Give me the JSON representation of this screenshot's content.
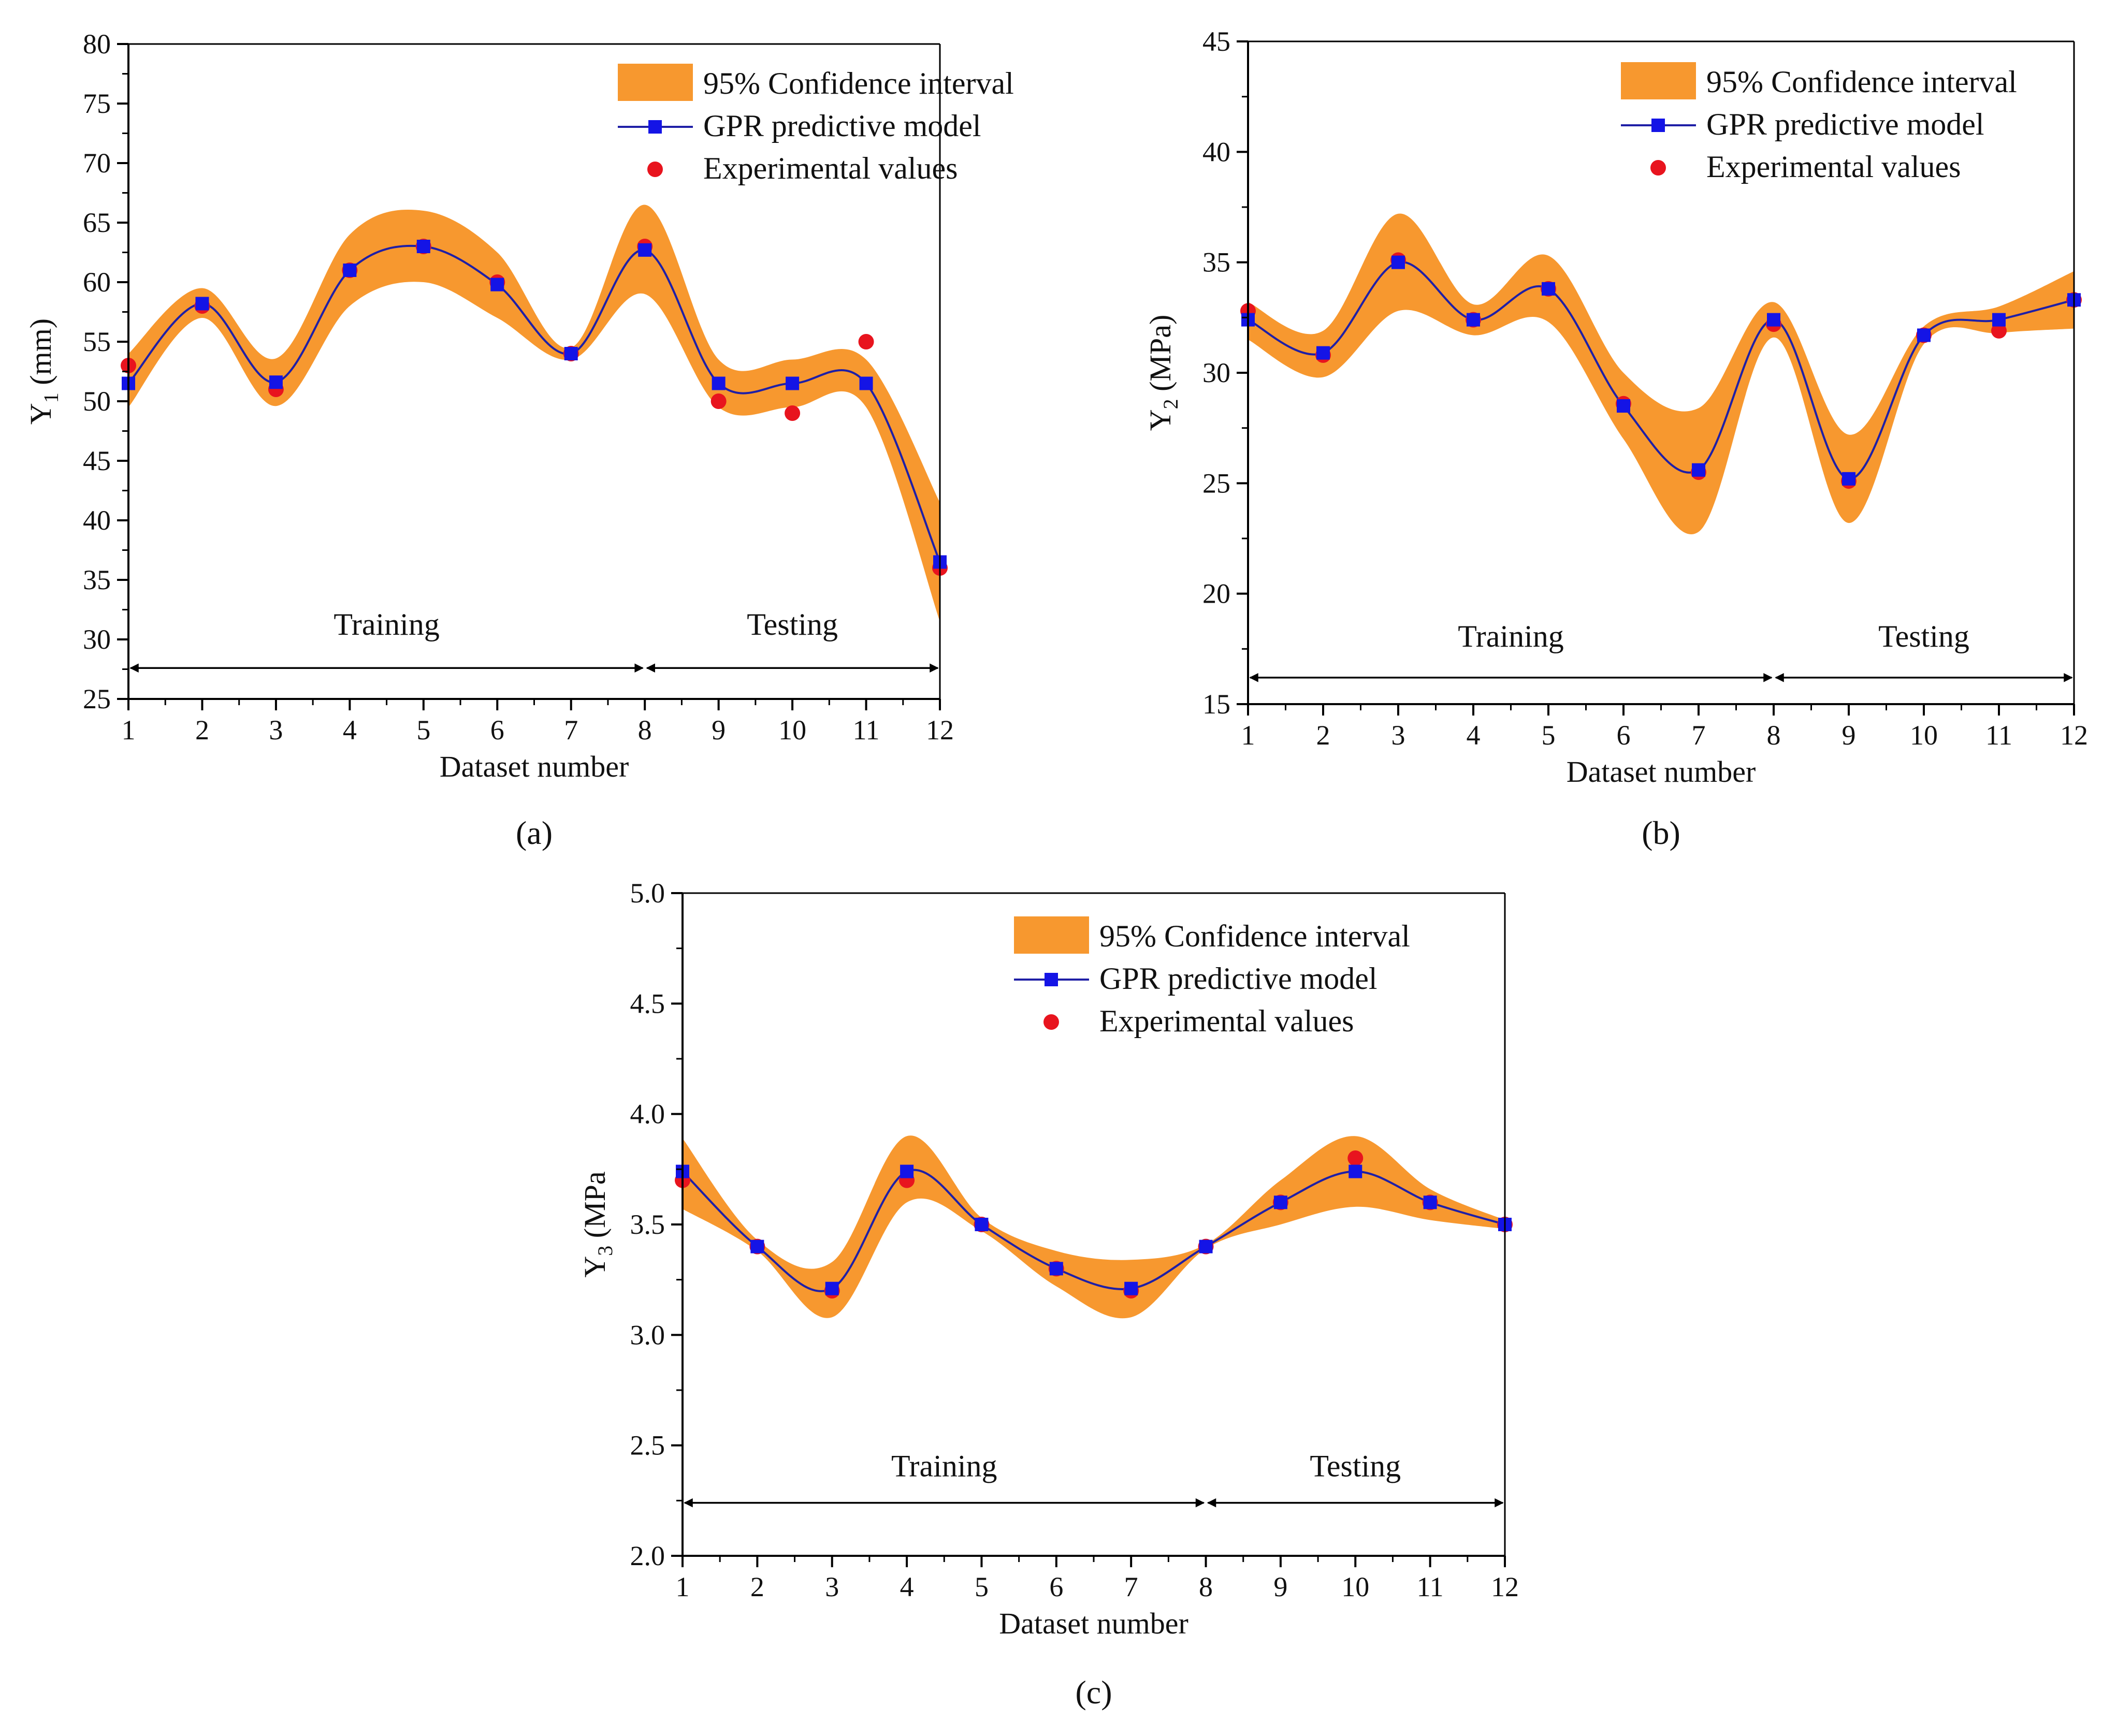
{
  "figure": {
    "panel_labels": [
      "(a)",
      "(b)",
      "(c)"
    ]
  },
  "legend": {
    "ci_label": "95% Confidence interval",
    "model_label": "GPR predictive model",
    "exp_label": "Experimental values"
  },
  "colors": {
    "ci_fill": "#F7982F",
    "model_line": "#1F1FA6",
    "model_marker": "#1414E6",
    "exp_marker": "#E8141E",
    "axis": "#000000"
  },
  "chart_data": [
    {
      "id": "a",
      "type": "line",
      "panel_label": "(a)",
      "xlabel": "Dataset number",
      "ylabel": "Y1 (mm)",
      "ylabel_main": "Y",
      "ylabel_sub": "1",
      "ylabel_unit": " (mm)",
      "xlim": [
        1,
        12
      ],
      "ylim": [
        25,
        80
      ],
      "xticks": [
        1,
        2,
        3,
        4,
        5,
        6,
        7,
        8,
        9,
        10,
        11,
        12
      ],
      "yticks": [
        25,
        30,
        35,
        40,
        45,
        50,
        55,
        60,
        65,
        70,
        75,
        80
      ],
      "x": [
        1,
        2,
        3,
        4,
        5,
        6,
        7,
        8,
        9,
        10,
        11,
        12
      ],
      "series": [
        {
          "name": "GPR predictive model",
          "values": [
            51.5,
            58.2,
            51.6,
            61.0,
            63.0,
            59.8,
            54.0,
            62.7,
            51.5,
            51.5,
            51.5,
            36.5
          ]
        },
        {
          "name": "Experimental values",
          "values": [
            53.0,
            58.0,
            51.0,
            61.0,
            63.0,
            60.0,
            54.0,
            63.0,
            50.0,
            49.0,
            55.0,
            36.0
          ]
        }
      ],
      "ci_lower": [
        49.5,
        57.0,
        49.6,
        58.0,
        60.0,
        57.0,
        53.5,
        59.0,
        49.5,
        49.5,
        49.5,
        31.5
      ],
      "ci_upper": [
        54.0,
        59.5,
        53.6,
        64.0,
        66.0,
        62.5,
        54.5,
        66.5,
        53.5,
        53.5,
        53.5,
        41.5
      ],
      "sections": [
        {
          "label": "Training",
          "from": 1,
          "to": 8
        },
        {
          "label": "Testing",
          "from": 8,
          "to": 12
        }
      ],
      "section_arrow_y": 27.6,
      "section_label_y": 30.4
    },
    {
      "id": "b",
      "type": "line",
      "panel_label": "(b)",
      "xlabel": "Dataset number",
      "ylabel": "Y2 (MPa)",
      "ylabel_main": "Y",
      "ylabel_sub": "2",
      "ylabel_unit": " (MPa)",
      "xlim": [
        1,
        12
      ],
      "ylim": [
        15,
        45
      ],
      "xticks": [
        1,
        2,
        3,
        4,
        5,
        6,
        7,
        8,
        9,
        10,
        11,
        12
      ],
      "yticks": [
        15,
        20,
        25,
        30,
        35,
        40,
        45
      ],
      "x": [
        1,
        2,
        3,
        4,
        5,
        6,
        7,
        8,
        9,
        10,
        11,
        12
      ],
      "series": [
        {
          "name": "GPR predictive model",
          "values": [
            32.4,
            30.9,
            35.0,
            32.4,
            33.8,
            28.5,
            25.6,
            32.4,
            25.2,
            31.7,
            32.4,
            33.3
          ]
        },
        {
          "name": "Experimental values",
          "values": [
            32.8,
            30.8,
            35.1,
            32.4,
            33.8,
            28.6,
            25.5,
            32.2,
            25.1,
            31.7,
            31.9,
            33.3
          ]
        }
      ],
      "ci_lower": [
        31.5,
        29.8,
        32.8,
        31.7,
        32.3,
        27.0,
        22.8,
        31.6,
        23.2,
        31.3,
        31.8,
        32.0
      ],
      "ci_upper": [
        33.2,
        31.9,
        37.2,
        33.1,
        35.3,
        30.0,
        28.4,
        33.2,
        27.2,
        32.1,
        33.0,
        34.6
      ],
      "sections": [
        {
          "label": "Training",
          "from": 1,
          "to": 8
        },
        {
          "label": "Testing",
          "from": 8,
          "to": 12
        }
      ],
      "section_arrow_y": 16.2,
      "section_label_y": 17.6
    },
    {
      "id": "c",
      "type": "line",
      "panel_label": "(c)",
      "xlabel": "Dataset number",
      "ylabel": "Y3 (MPa",
      "ylabel_main": "Y",
      "ylabel_sub": "3",
      "ylabel_unit": " (MPa",
      "xlim": [
        1,
        12
      ],
      "ylim": [
        2.0,
        5.0
      ],
      "xticks": [
        1,
        2,
        3,
        4,
        5,
        6,
        7,
        8,
        9,
        10,
        11,
        12
      ],
      "yticks": [
        "2.0",
        "2.5",
        "3.0",
        "3.5",
        "4.0",
        "4.5",
        "5.0"
      ],
      "x": [
        1,
        2,
        3,
        4,
        5,
        6,
        7,
        8,
        9,
        10,
        11,
        12
      ],
      "series": [
        {
          "name": "GPR predictive model",
          "values": [
            3.74,
            3.4,
            3.21,
            3.74,
            3.5,
            3.3,
            3.21,
            3.4,
            3.6,
            3.74,
            3.6,
            3.5
          ]
        },
        {
          "name": "Experimental values",
          "values": [
            3.7,
            3.4,
            3.2,
            3.7,
            3.5,
            3.3,
            3.2,
            3.4,
            3.6,
            3.8,
            3.6,
            3.5
          ]
        }
      ],
      "ci_lower": [
        3.57,
        3.38,
        3.08,
        3.6,
        3.47,
        3.22,
        3.08,
        3.39,
        3.5,
        3.58,
        3.52,
        3.48
      ],
      "ci_upper": [
        3.89,
        3.43,
        3.33,
        3.9,
        3.53,
        3.38,
        3.34,
        3.41,
        3.7,
        3.9,
        3.66,
        3.52
      ],
      "sections": [
        {
          "label": "Training",
          "from": 1,
          "to": 8
        },
        {
          "label": "Testing",
          "from": 8,
          "to": 12
        }
      ],
      "section_arrow_y": 2.24,
      "section_label_y": 2.36
    }
  ]
}
